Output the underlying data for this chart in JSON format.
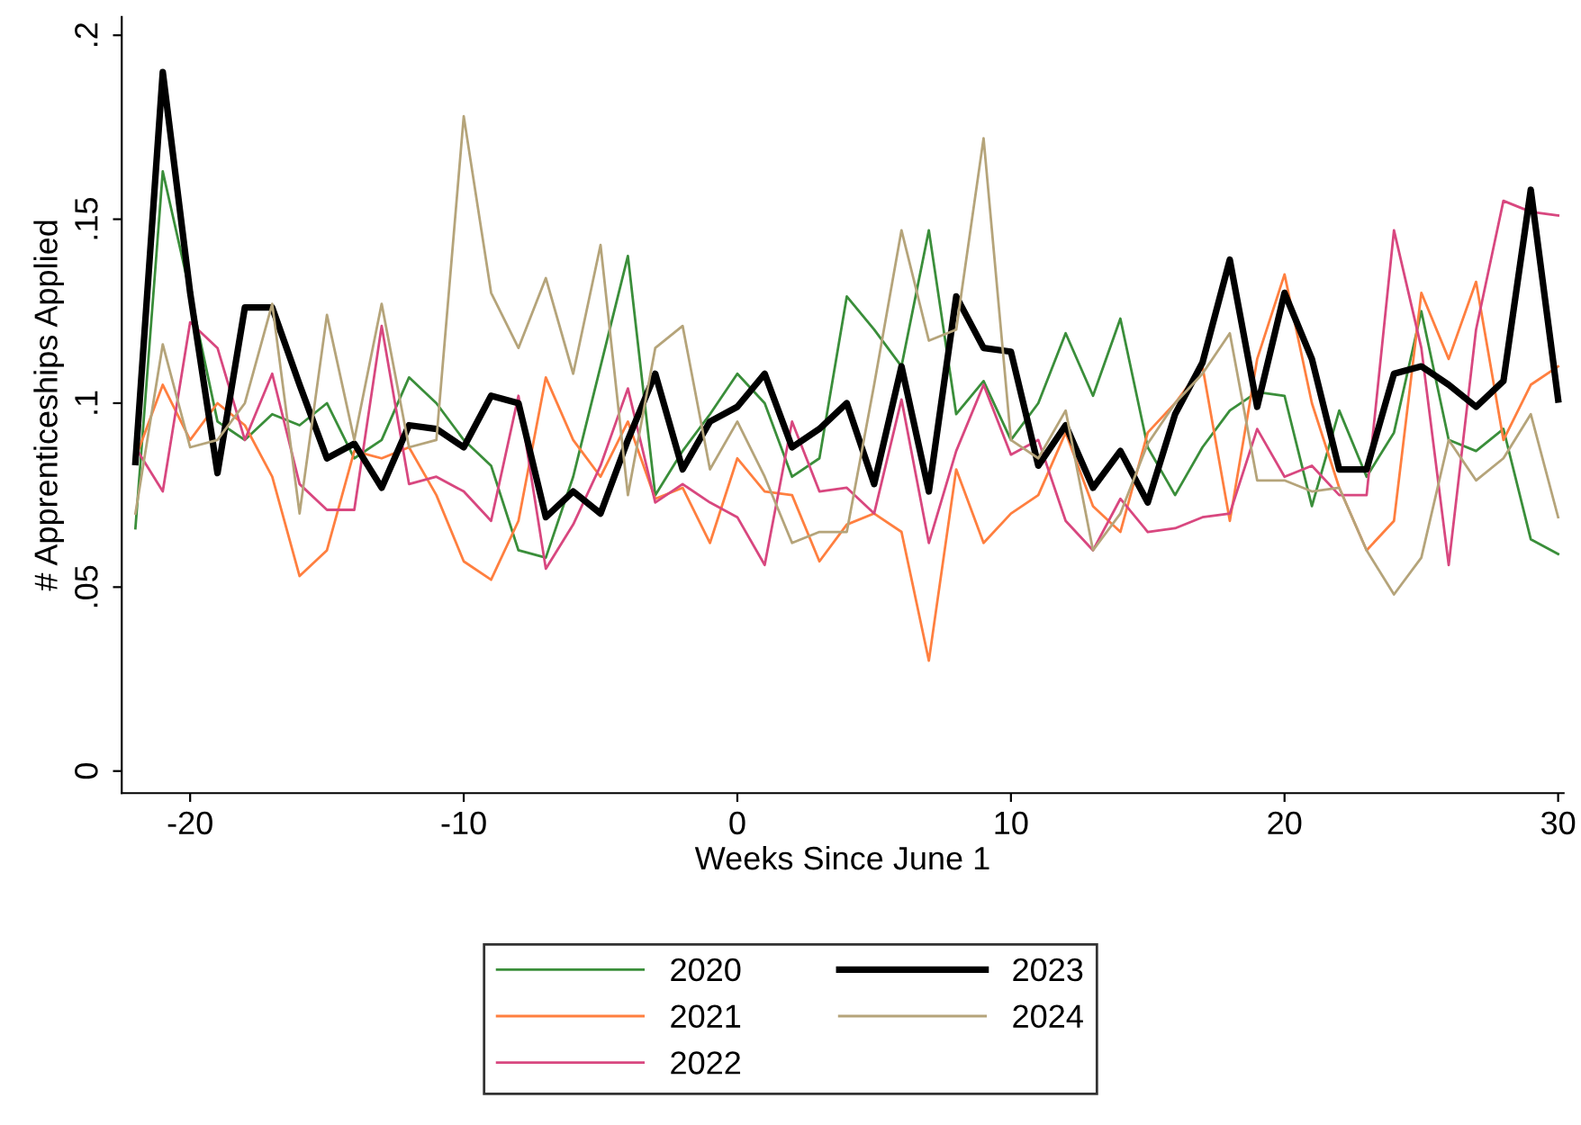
{
  "chart_data": {
    "type": "line",
    "xlabel": "Weeks Since June 1",
    "ylabel": "# Apprenticeships Applied",
    "x": [
      -22,
      -21,
      -20,
      -19,
      -18,
      -17,
      -16,
      -15,
      -14,
      -13,
      -12,
      -11,
      -10,
      -9,
      -8,
      -7,
      -6,
      -5,
      -4,
      -3,
      -2,
      -1,
      0,
      1,
      2,
      3,
      4,
      5,
      6,
      7,
      8,
      9,
      10,
      11,
      12,
      13,
      14,
      15,
      16,
      17,
      18,
      19,
      20,
      21,
      22,
      23,
      24,
      25,
      26,
      27,
      28,
      29,
      30
    ],
    "series": [
      {
        "name": "2020",
        "color": "#3a8e3a",
        "values": [
          0.066,
          0.163,
          0.13,
          0.095,
          0.09,
          0.097,
          0.094,
          0.1,
          0.085,
          0.09,
          0.107,
          0.1,
          0.09,
          0.083,
          0.06,
          0.058,
          0.08,
          0.11,
          0.14,
          0.075,
          0.087,
          0.097,
          0.108,
          0.1,
          0.08,
          0.085,
          0.129,
          0.12,
          0.11,
          0.147,
          0.097,
          0.106,
          0.09,
          0.1,
          0.119,
          0.102,
          0.123,
          0.088,
          0.075,
          0.088,
          0.098,
          0.103,
          0.102,
          0.072,
          0.098,
          0.08,
          0.092,
          0.125,
          0.09,
          0.087,
          0.093,
          0.063,
          0.059
        ]
      },
      {
        "name": "2021",
        "color": "#ff7f3f",
        "values": [
          0.085,
          0.105,
          0.09,
          0.1,
          0.094,
          0.08,
          0.053,
          0.06,
          0.087,
          0.085,
          0.088,
          0.075,
          0.057,
          0.052,
          0.068,
          0.107,
          0.09,
          0.08,
          0.095,
          0.074,
          0.077,
          0.062,
          0.085,
          0.076,
          0.075,
          0.057,
          0.067,
          0.07,
          0.065,
          0.03,
          0.082,
          0.062,
          0.07,
          0.075,
          0.092,
          0.072,
          0.065,
          0.092,
          0.1,
          0.11,
          0.068,
          0.112,
          0.135,
          0.1,
          0.077,
          0.06,
          0.068,
          0.13,
          0.112,
          0.133,
          0.09,
          0.105,
          0.11
        ]
      },
      {
        "name": "2022",
        "color": "#d8477f",
        "values": [
          0.088,
          0.076,
          0.122,
          0.115,
          0.09,
          0.108,
          0.078,
          0.071,
          0.071,
          0.121,
          0.078,
          0.08,
          0.076,
          0.068,
          0.102,
          0.055,
          0.067,
          0.083,
          0.104,
          0.073,
          0.078,
          0.073,
          0.069,
          0.056,
          0.095,
          0.076,
          0.077,
          0.07,
          0.101,
          0.062,
          0.087,
          0.105,
          0.086,
          0.09,
          0.068,
          0.06,
          0.074,
          0.065,
          0.066,
          0.069,
          0.07,
          0.093,
          0.08,
          0.083,
          0.075,
          0.075,
          0.147,
          0.115,
          0.056,
          0.12,
          0.155,
          0.152,
          0.151
        ]
      },
      {
        "name": "2023",
        "color": "#000000",
        "values": [
          0.084,
          0.19,
          0.13,
          0.081,
          0.126,
          0.126,
          0.105,
          0.085,
          0.089,
          0.077,
          0.094,
          0.093,
          0.088,
          0.102,
          0.1,
          0.069,
          0.076,
          0.07,
          0.09,
          0.108,
          0.082,
          0.095,
          0.099,
          0.108,
          0.088,
          0.093,
          0.1,
          0.078,
          0.11,
          0.076,
          0.129,
          0.115,
          0.114,
          0.083,
          0.094,
          0.077,
          0.087,
          0.073,
          0.097,
          0.111,
          0.139,
          0.099,
          0.13,
          0.112,
          0.082,
          0.082,
          0.108,
          0.11,
          0.105,
          0.099,
          0.106,
          0.158,
          0.101
        ]
      },
      {
        "name": "2024",
        "color": "#b5a47a",
        "values": [
          0.07,
          0.116,
          0.088,
          0.09,
          0.1,
          0.127,
          0.07,
          0.124,
          0.09,
          0.127,
          0.088,
          0.09,
          0.178,
          0.13,
          0.115,
          0.134,
          0.108,
          0.143,
          0.075,
          0.115,
          0.121,
          0.082,
          0.095,
          0.08,
          0.062,
          0.065,
          0.065,
          0.105,
          0.147,
          0.117,
          0.12,
          0.172,
          0.09,
          0.085,
          0.098,
          0.06,
          0.07,
          0.089,
          0.1,
          0.108,
          0.119,
          0.079,
          0.079,
          0.076,
          0.077,
          0.06,
          0.048,
          0.058,
          0.09,
          0.079,
          0.085,
          0.097,
          0.069
        ]
      }
    ],
    "xlim": [
      -22.5,
      30.2
    ],
    "xticks": [
      -20,
      -10,
      0,
      10,
      20,
      30
    ],
    "ylim": [
      -0.006,
      0.205
    ],
    "yticks": [
      {
        "value": 0,
        "label": "0"
      },
      {
        "value": 0.05,
        "label": ".05"
      },
      {
        "value": 0.1,
        "label": ".1"
      },
      {
        "value": 0.15,
        "label": ".15"
      },
      {
        "value": 0.2,
        "label": ".2"
      }
    ],
    "grid": false,
    "legend": "bottom",
    "line_style": "solid",
    "marker": "none"
  }
}
